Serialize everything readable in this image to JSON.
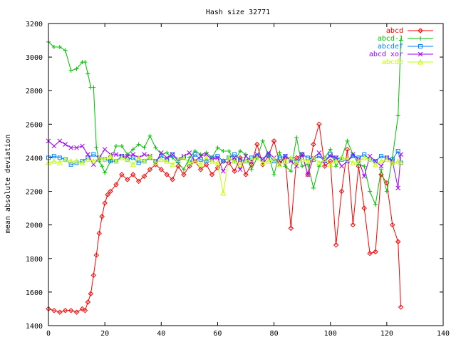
{
  "chart_data": {
    "type": "line",
    "title": "Hash size 32771",
    "xlabel": "",
    "ylabel": "mean absolute deviation",
    "xlim": [
      0,
      140
    ],
    "ylim": [
      1400,
      3200
    ],
    "xticks": [
      0,
      20,
      40,
      60,
      80,
      100,
      120,
      140
    ],
    "yticks": [
      1400,
      1600,
      1800,
      2000,
      2200,
      2400,
      2600,
      2800,
      3000,
      3200
    ],
    "grid": false,
    "legend_position": "top-right",
    "series": [
      {
        "name": "abcd",
        "color": "#ff0000",
        "marker": "diamond",
        "x": [
          0,
          2,
          4,
          6,
          8,
          10,
          12,
          13,
          14,
          15,
          16,
          17,
          18,
          19,
          20,
          21,
          22,
          24,
          26,
          28,
          30,
          32,
          34,
          36,
          38,
          40,
          42,
          44,
          46,
          48,
          50,
          52,
          54,
          56,
          58,
          60,
          62,
          64,
          66,
          68,
          70,
          72,
          74,
          76,
          78,
          80,
          82,
          84,
          86,
          88,
          90,
          92,
          94,
          96,
          98,
          100,
          102,
          104,
          106,
          108,
          110,
          112,
          114,
          116,
          118,
          120,
          122,
          124,
          125
        ],
        "y": [
          1500,
          1490,
          1480,
          1490,
          1490,
          1480,
          1500,
          1490,
          1540,
          1590,
          1700,
          1820,
          1950,
          2050,
          2130,
          2180,
          2200,
          2240,
          2300,
          2270,
          2300,
          2260,
          2290,
          2330,
          2360,
          2330,
          2300,
          2270,
          2350,
          2300,
          2350,
          2380,
          2330,
          2360,
          2300,
          2340,
          2380,
          2370,
          2320,
          2400,
          2300,
          2360,
          2480,
          2360,
          2410,
          2500,
          2370,
          2400,
          1980,
          2400,
          2420,
          2300,
          2480,
          2600,
          2350,
          2380,
          1880,
          2200,
          2450,
          2000,
          2350,
          2100,
          1830,
          1840,
          2300,
          2250,
          2000,
          1900,
          1510
        ]
      },
      {
        "name": "abcd-1",
        "color": "#00c000",
        "marker": "plus",
        "x": [
          0,
          2,
          4,
          6,
          8,
          10,
          12,
          13,
          14,
          15,
          16,
          17,
          18,
          19,
          20,
          22,
          24,
          26,
          28,
          30,
          32,
          34,
          36,
          38,
          40,
          42,
          44,
          46,
          48,
          50,
          52,
          54,
          56,
          58,
          60,
          62,
          64,
          66,
          68,
          70,
          72,
          74,
          76,
          78,
          80,
          82,
          84,
          86,
          88,
          90,
          92,
          94,
          96,
          98,
          100,
          102,
          104,
          106,
          108,
          110,
          112,
          114,
          116,
          118,
          120,
          122,
          124,
          125
        ],
        "y": [
          3090,
          3060,
          3060,
          3040,
          2920,
          2930,
          2970,
          2970,
          2900,
          2820,
          2820,
          2460,
          2380,
          2350,
          2310,
          2380,
          2470,
          2470,
          2420,
          2450,
          2480,
          2460,
          2530,
          2460,
          2420,
          2430,
          2400,
          2370,
          2330,
          2400,
          2440,
          2420,
          2430,
          2400,
          2460,
          2440,
          2440,
          2380,
          2440,
          2420,
          2330,
          2400,
          2500,
          2420,
          2300,
          2430,
          2350,
          2320,
          2520,
          2350,
          2360,
          2220,
          2350,
          2400,
          2450,
          2350,
          2400,
          2500,
          2420,
          2360,
          2350,
          2200,
          2120,
          2330,
          2200,
          2400,
          2650,
          3100
        ]
      },
      {
        "name": "abcdef",
        "color": "#0080ff",
        "marker": "square",
        "x": [
          0,
          2,
          4,
          6,
          8,
          10,
          12,
          14,
          16,
          18,
          20,
          22,
          24,
          26,
          28,
          30,
          32,
          34,
          36,
          38,
          40,
          42,
          44,
          46,
          48,
          50,
          52,
          54,
          56,
          58,
          60,
          62,
          64,
          66,
          68,
          70,
          72,
          74,
          76,
          78,
          80,
          82,
          84,
          86,
          88,
          90,
          92,
          94,
          96,
          98,
          100,
          102,
          104,
          106,
          108,
          110,
          112,
          114,
          116,
          118,
          120,
          122,
          124,
          125
        ],
        "y": [
          2400,
          2410,
          2400,
          2390,
          2360,
          2370,
          2380,
          2400,
          2420,
          2400,
          2390,
          2380,
          2380,
          2410,
          2390,
          2400,
          2370,
          2380,
          2400,
          2380,
          2410,
          2390,
          2420,
          2380,
          2400,
          2370,
          2420,
          2390,
          2380,
          2400,
          2410,
          2380,
          2400,
          2420,
          2390,
          2380,
          2400,
          2410,
          2390,
          2420,
          2380,
          2400,
          2410,
          2390,
          2380,
          2420,
          2400,
          2390,
          2410,
          2380,
          2420,
          2400,
          2390,
          2380,
          2410,
          2400,
          2420,
          2390,
          2380,
          2410,
          2400,
          2390,
          2440,
          2370
        ]
      },
      {
        "name": "abcd xor",
        "color": "#a000ff",
        "marker": "cross",
        "x": [
          0,
          2,
          4,
          6,
          8,
          10,
          12,
          14,
          16,
          18,
          20,
          22,
          24,
          26,
          28,
          30,
          32,
          34,
          36,
          38,
          40,
          42,
          44,
          46,
          48,
          50,
          52,
          54,
          56,
          58,
          60,
          62,
          64,
          66,
          68,
          70,
          72,
          74,
          76,
          78,
          80,
          82,
          84,
          86,
          88,
          90,
          92,
          94,
          96,
          98,
          100,
          102,
          104,
          106,
          108,
          110,
          112,
          114,
          116,
          118,
          120,
          122,
          124,
          125
        ],
        "y": [
          2500,
          2470,
          2500,
          2480,
          2460,
          2460,
          2470,
          2420,
          2360,
          2400,
          2450,
          2420,
          2420,
          2410,
          2410,
          2420,
          2400,
          2420,
          2410,
          2370,
          2430,
          2400,
          2420,
          2390,
          2410,
          2430,
          2380,
          2410,
          2420,
          2390,
          2400,
          2320,
          2380,
          2400,
          2330,
          2410,
          2380,
          2420,
          2390,
          2430,
          2400,
          2360,
          2410,
          2380,
          2350,
          2420,
          2300,
          2400,
          2430,
          2380,
          2410,
          2400,
          2350,
          2380,
          2420,
          2390,
          2290,
          2410,
          2380,
          2350,
          2400,
          2380,
          2220,
          2420
        ]
      },
      {
        "name": "abcde",
        "color": "#c0ff00",
        "marker": "triangle",
        "x": [
          0,
          2,
          4,
          6,
          8,
          10,
          12,
          14,
          16,
          18,
          20,
          22,
          24,
          26,
          28,
          30,
          32,
          34,
          36,
          38,
          40,
          42,
          44,
          46,
          48,
          50,
          52,
          54,
          56,
          58,
          60,
          62,
          64,
          66,
          68,
          70,
          72,
          74,
          76,
          78,
          80,
          82,
          84,
          86,
          88,
          90,
          92,
          94,
          96,
          98,
          100,
          102,
          104,
          106,
          108,
          110,
          112,
          114,
          116,
          118,
          120,
          122,
          124,
          125
        ],
        "y": [
          2370,
          2380,
          2370,
          2390,
          2380,
          2380,
          2370,
          2390,
          2380,
          2400,
          2390,
          2410,
          2380,
          2400,
          2390,
          2360,
          2400,
          2380,
          2410,
          2370,
          2390,
          2380,
          2360,
          2390,
          2400,
          2370,
          2380,
          2360,
          2400,
          2380,
          2370,
          2190,
          2400,
          2380,
          2360,
          2380,
          2390,
          2400,
          2370,
          2380,
          2390,
          2360,
          2380,
          2400,
          2370,
          2390,
          2380,
          2400,
          2370,
          2390,
          2360,
          2380,
          2400,
          2390,
          2370,
          2380,
          2400,
          2390,
          2360,
          2380,
          2390,
          2370,
          2380,
          2370
        ]
      }
    ]
  }
}
